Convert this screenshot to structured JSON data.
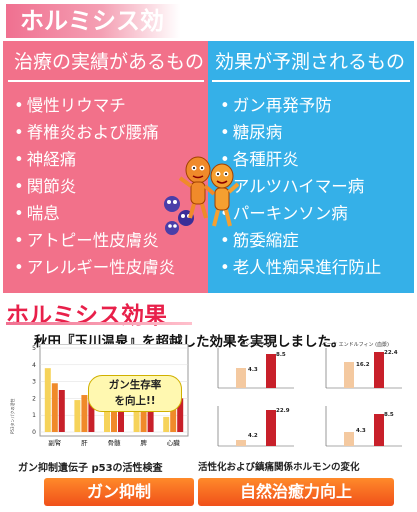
{
  "top_section": {
    "title": "ホルミシス効果",
    "left_panel": {
      "heading": "治療の実績があるもの",
      "items": [
        "慢性リウマチ",
        "脊椎炎および腰痛",
        "神経痛",
        "関節炎",
        "喘息",
        "アトピー性皮膚炎",
        "アレルギー性皮膚炎"
      ],
      "color": "#f2718a"
    },
    "right_panel": {
      "heading": "効果が予測されるもの",
      "items": [
        "ガン再発予防",
        "糖尿病",
        "各種肝炎",
        "アルツハイマー病",
        "パーキンソン病",
        "筋委縮症",
        "老人性痴呆進行防止"
      ],
      "color": "#35b0e8"
    },
    "illustration": {
      "figures": "orange-cartoon-characters",
      "virus_icons": "blue-virus-icons"
    }
  },
  "bottom_section": {
    "title": "ホルミシス効果",
    "subtitle": "秋田『玉川温泉』を超越した効果を実現しました。",
    "left_chart": {
      "callout_line1": "ガン生存率",
      "callout_line2": "を向上!!",
      "y_ticks": [
        "5",
        "4",
        "3",
        "2",
        "1",
        "0"
      ],
      "categories": [
        "副腎",
        "肝",
        "骨髄",
        "脾",
        "心臓"
      ],
      "caption": "ガン抑制遺伝子 p53の活性検査"
    },
    "right_charts": {
      "panels": [
        {
          "title": "インシュリン",
          "low": "4.3",
          "high": "8.5"
        },
        {
          "title": "ベータ エンドルフィン (血漿)",
          "low": "16.2",
          "high": "22.4"
        },
        {
          "title": "",
          "low": "4.2",
          "high": "22.9"
        },
        {
          "title": "",
          "low": "4.3",
          "high": "8.5"
        }
      ],
      "caption": "活性化および鎮痛関係ホルモンの変化"
    },
    "buttons": {
      "left": "ガン抑制",
      "right": "自然治癒力向上"
    }
  }
}
